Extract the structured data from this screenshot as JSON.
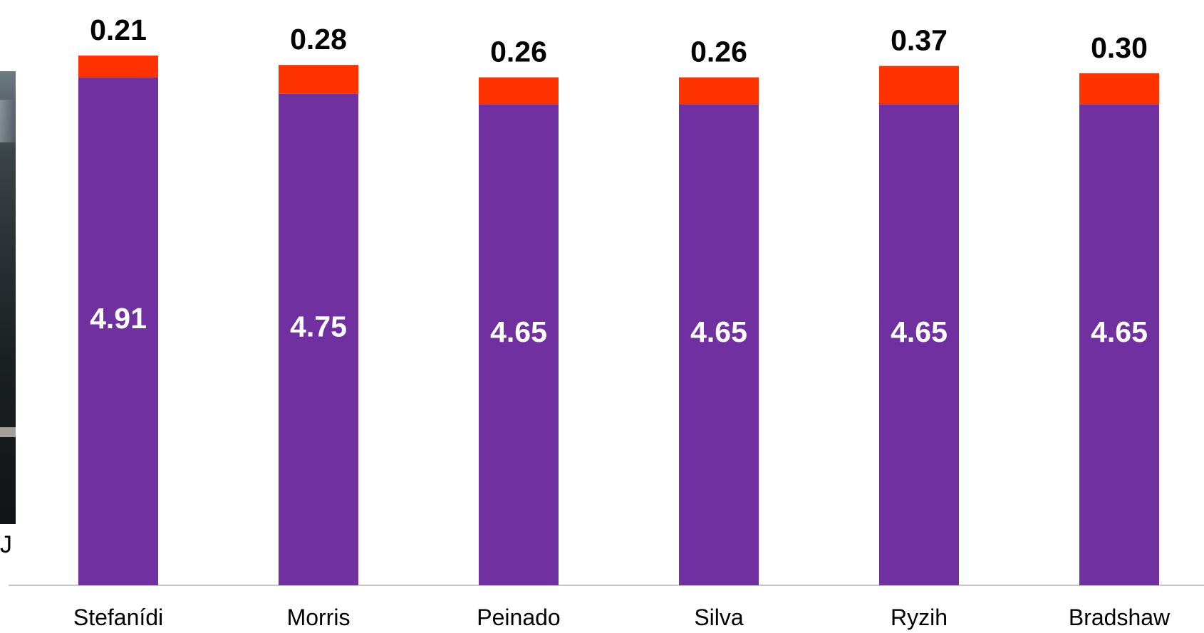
{
  "chart_data": {
    "type": "bar",
    "stacked": true,
    "categories": [
      "Stefanídi",
      "Morris",
      "Peinado",
      "Silva",
      "Ryzih",
      "Bradshaw"
    ],
    "series": [
      {
        "values": [
          4.91,
          4.75,
          4.65,
          4.65,
          4.65,
          4.65
        ],
        "color": "#7030a0"
      },
      {
        "values": [
          0.21,
          0.28,
          0.26,
          0.26,
          0.37,
          0.3
        ],
        "color": "#ff3300"
      }
    ],
    "data_labels": {
      "base": [
        "4.91",
        "4.75",
        "4.65",
        "4.65",
        "4.65",
        "4.65"
      ],
      "top": [
        "0.21",
        "0.28",
        "0.26",
        "0.26",
        "0.37",
        "0.30"
      ]
    },
    "title": "",
    "xlabel": "",
    "ylabel": "",
    "grid": false,
    "legend": "none"
  },
  "fragment_glyph": "J"
}
